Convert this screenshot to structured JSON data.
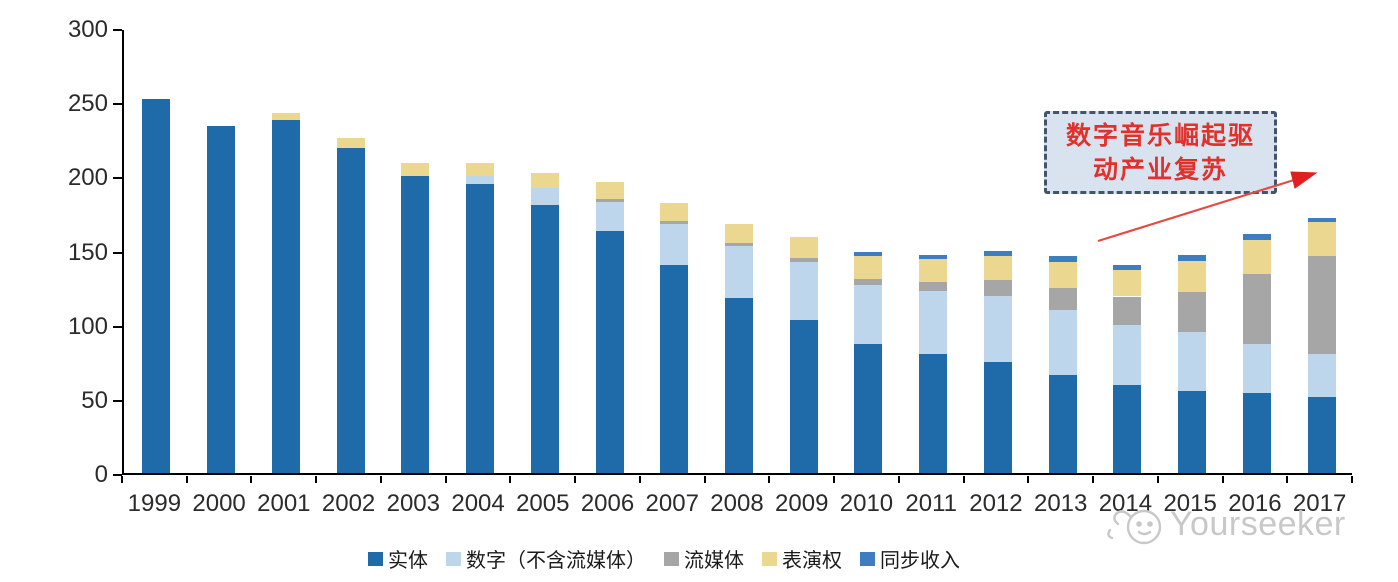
{
  "chart_data": {
    "type": "bar",
    "stacked": true,
    "title": "",
    "categories": [
      "1999",
      "2000",
      "2001",
      "2002",
      "2003",
      "2004",
      "2005",
      "2006",
      "2007",
      "2008",
      "2009",
      "2010",
      "2011",
      "2012",
      "2013",
      "2014",
      "2015",
      "2016",
      "2017"
    ],
    "series": [
      {
        "name": "实体",
        "color": "#1f6ba9",
        "values": [
          252,
          234,
          238,
          219,
          200,
          195,
          181,
          163,
          140,
          118,
          103,
          87,
          80,
          75,
          66,
          59,
          55,
          54,
          51
        ]
      },
      {
        "name": "数字（不含流媒体）",
        "color": "#bdd6eb",
        "values": [
          0,
          0,
          0,
          0,
          0,
          5,
          11,
          20,
          28,
          35,
          39,
          40,
          43,
          44,
          44,
          41,
          40,
          33,
          29
        ]
      },
      {
        "name": "流媒体",
        "color": "#a6a6a6",
        "values": [
          0,
          0,
          0,
          0,
          0,
          0,
          0,
          2,
          2,
          2,
          3,
          4,
          6,
          11,
          15,
          19,
          27,
          47,
          66
        ]
      },
      {
        "name": "表演权",
        "color": "#ebd78f",
        "values": [
          0,
          0,
          5,
          7,
          9,
          9,
          10,
          11,
          12,
          13,
          14,
          15,
          15,
          16,
          17,
          18,
          21,
          23,
          23
        ]
      },
      {
        "name": "同步收入",
        "color": "#3e7ec0",
        "values": [
          0,
          0,
          0,
          0,
          0,
          0,
          0,
          0,
          0,
          0,
          0,
          3,
          3,
          4,
          4,
          3,
          4,
          4,
          3
        ]
      }
    ],
    "ylim": [
      0,
      300
    ],
    "yticks": [
      0,
      50,
      100,
      150,
      200,
      250,
      300
    ],
    "xlabel": "",
    "ylabel": "",
    "grid": false,
    "legend_position": "bottom"
  },
  "annotation": {
    "line1": "数字音乐崛起驱",
    "line2": "动产业复苏",
    "border_color": "#44546a",
    "fill_color": "#d9e3f0",
    "text_color": "#e0312b",
    "arrow_color": "#e24c44"
  },
  "watermark": {
    "text": "Yourseeker"
  }
}
